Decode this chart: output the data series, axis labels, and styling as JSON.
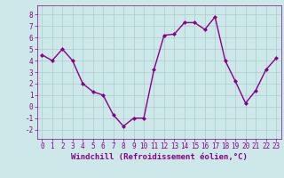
{
  "x": [
    0,
    1,
    2,
    3,
    4,
    5,
    6,
    7,
    8,
    9,
    10,
    11,
    12,
    13,
    14,
    15,
    16,
    17,
    18,
    19,
    20,
    21,
    22,
    23
  ],
  "y": [
    4.5,
    4.0,
    5.0,
    4.0,
    2.0,
    1.3,
    1.0,
    -0.7,
    -1.7,
    -1.0,
    -1.0,
    3.2,
    6.2,
    6.3,
    7.3,
    7.3,
    6.7,
    7.8,
    4.0,
    2.2,
    0.3,
    1.4,
    3.2,
    4.2
  ],
  "line_color": "#880088",
  "marker": "D",
  "marker_size": 2,
  "linewidth": 1.0,
  "bg_color": "#cce8e8",
  "grid_color": "#aacccc",
  "xlabel": "Windchill (Refroidissement éolien,°C)",
  "xlabel_fontsize": 6.5,
  "yticks": [
    -2,
    -1,
    0,
    1,
    2,
    3,
    4,
    5,
    6,
    7,
    8
  ],
  "xtick_labels": [
    "0",
    "1",
    "2",
    "3",
    "4",
    "5",
    "6",
    "7",
    "8",
    "9",
    "10",
    "11",
    "12",
    "13",
    "14",
    "15",
    "16",
    "17",
    "18",
    "19",
    "20",
    "21",
    "22",
    "23"
  ],
  "ylim": [
    -2.8,
    8.8
  ],
  "xlim": [
    -0.5,
    23.5
  ],
  "tick_fontsize": 5.5,
  "tick_color": "#880088",
  "label_color": "#880088",
  "spine_color": "#880088"
}
